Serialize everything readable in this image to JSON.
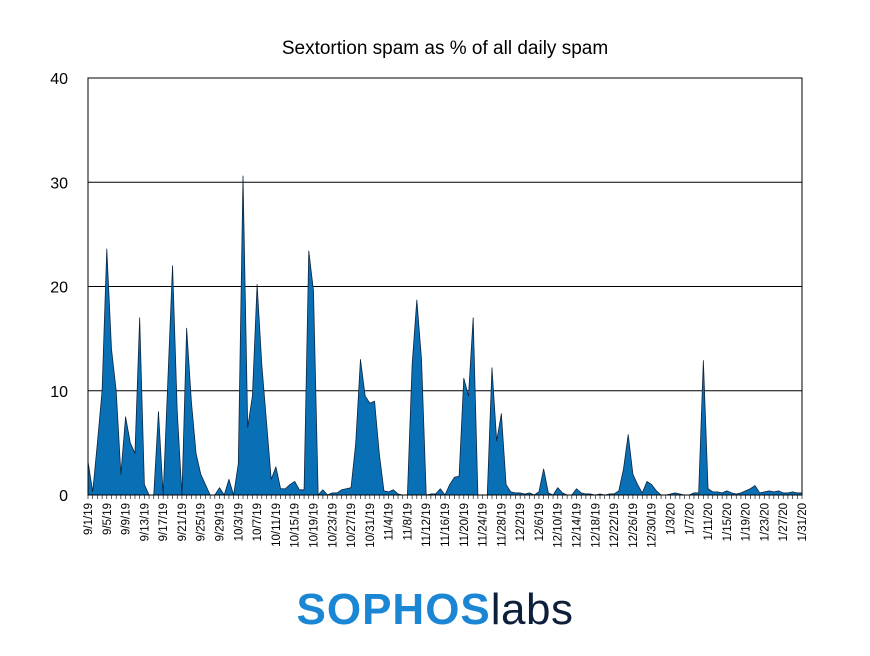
{
  "chart_data": {
    "type": "area",
    "title": "Sextortion spam as % of all daily spam",
    "xlabel": "",
    "ylabel": "",
    "ylim": [
      0,
      40
    ],
    "yticks": [
      "0",
      "10",
      "20",
      "30",
      "40"
    ],
    "grid": true,
    "legend": "none",
    "fill_color": "#0a70b6",
    "x_tick_labels": [
      "9/1/19",
      "9/5/19",
      "9/9/19",
      "9/13/19",
      "9/17/19",
      "9/21/19",
      "9/25/19",
      "9/29/19",
      "10/3/19",
      "10/7/19",
      "10/11/19",
      "10/15/19",
      "10/19/19",
      "10/23/19",
      "10/27/19",
      "10/31/19",
      "11/4/19",
      "11/8/19",
      "11/12/19",
      "11/16/19",
      "11/20/19",
      "11/24/19",
      "11/28/19",
      "12/2/19",
      "12/6/19",
      "12/10/19",
      "12/14/19",
      "12/18/19",
      "12/22/19",
      "12/26/19",
      "12/30/19",
      "1/3/20",
      "1/7/20",
      "1/11/20",
      "1/15/20",
      "1/19/20",
      "1/23/20",
      "1/27/20",
      "1/31/20"
    ],
    "x_start": "9/1/19",
    "x_end": "1/31/20",
    "values": [
      3.2,
      0.3,
      5,
      10,
      23.6,
      14,
      10,
      2,
      7.5,
      5,
      4,
      17,
      1,
      0,
      0,
      8,
      0,
      11,
      22,
      8,
      0,
      16,
      9,
      4,
      2,
      1,
      0,
      0,
      0.7,
      0,
      1.5,
      0,
      3,
      30.6,
      6.5,
      9.5,
      20.2,
      12.5,
      7,
      1.5,
      2.7,
      0.6,
      0.6,
      1,
      1.3,
      0.5,
      0.5,
      23.4,
      19.6,
      0,
      0.5,
      0,
      0.2,
      0.2,
      0.5,
      0.6,
      0.7,
      5,
      13,
      9.5,
      8.8,
      9,
      4,
      0.4,
      0.3,
      0.5,
      0.1,
      0,
      0,
      12.5,
      18.7,
      13,
      0,
      0.1,
      0.1,
      0.6,
      0,
      1,
      1.7,
      1.8,
      11.2,
      9.5,
      17,
      0,
      0,
      0,
      12.2,
      5.2,
      7.8,
      1,
      0.3,
      0.2,
      0.2,
      0.1,
      0.2,
      0,
      0.3,
      2.5,
      0.2,
      0,
      0.7,
      0.2,
      0,
      0,
      0.6,
      0.2,
      0.1,
      0.1,
      0,
      0.1,
      0,
      0.1,
      0.1,
      0.4,
      2.5,
      5.8,
      2,
      1,
      0.2,
      1.3,
      1,
      0.4,
      0,
      0,
      0.1,
      0.2,
      0.1,
      0,
      0,
      0.2,
      0.2,
      12.9,
      0.6,
      0.3,
      0.3,
      0.2,
      0.4,
      0.2,
      0.1,
      0.2,
      0.4,
      0.6,
      0.9,
      0.2,
      0.3,
      0.4,
      0.3,
      0.4,
      0.2,
      0.2,
      0.3,
      0.2,
      0.2
    ]
  },
  "logo": {
    "part1": "SOPHOS",
    "part2": "labs"
  }
}
